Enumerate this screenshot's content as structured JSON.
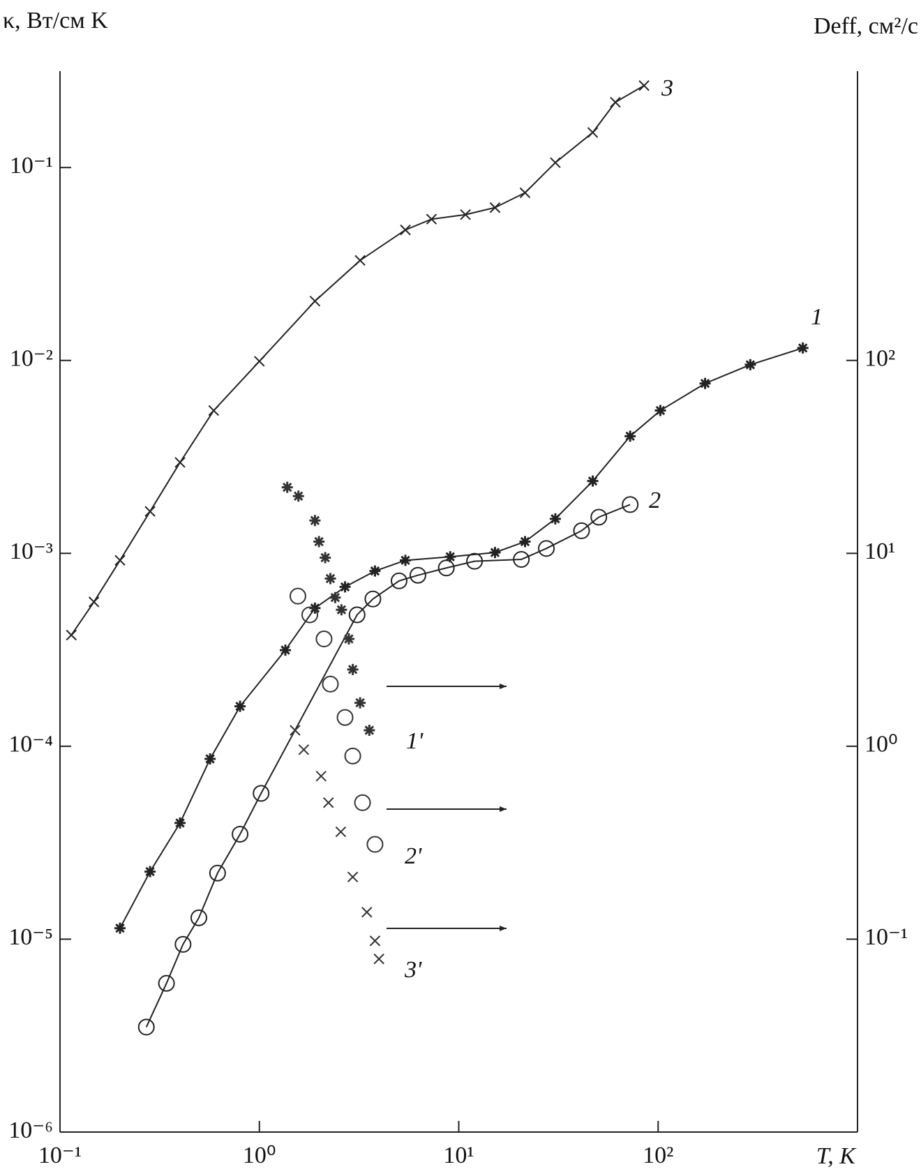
{
  "chart_data": {
    "type": "scatter",
    "xlabel": "T, K",
    "ylabel": "κ, Вт/см K",
    "y2label": "Deff, см²/с",
    "xscale": "log",
    "yscale": "log",
    "xlim": [
      0.1,
      1000
    ],
    "ylim": [
      1e-06,
      0.316
    ],
    "y2lim": [
      0.01,
      3160
    ],
    "xticks": [
      {
        "value": 0.1,
        "label": "10⁻¹"
      },
      {
        "value": 1,
        "label": "10⁰"
      },
      {
        "value": 10,
        "label": "10¹"
      },
      {
        "value": 100,
        "label": "10²"
      }
    ],
    "yticks": [
      {
        "value": 1e-06,
        "label": "10⁻⁶"
      },
      {
        "value": 1e-05,
        "label": "10⁻⁵"
      },
      {
        "value": 0.0001,
        "label": "10⁻⁴"
      },
      {
        "value": 0.001,
        "label": "10⁻³"
      },
      {
        "value": 0.01,
        "label": "10⁻²"
      },
      {
        "value": 0.1,
        "label": "10⁻¹"
      }
    ],
    "y2ticks": [
      {
        "value": 0.1,
        "label": "10⁻¹"
      },
      {
        "value": 1,
        "label": "10⁰"
      },
      {
        "value": 10,
        "label": "10¹"
      },
      {
        "value": 100,
        "label": "10²"
      }
    ],
    "series": [
      {
        "name": "1",
        "color": "#222222",
        "marker": "asterisk",
        "line": true,
        "x": [
          0.2,
          0.283,
          0.4,
          0.566,
          0.8,
          1.35,
          1.9,
          2.69,
          3.8,
          5.4,
          9.06,
          15.2,
          21.5,
          30.5,
          47,
          72.4,
          102.6,
          172,
          290,
          532
        ],
        "values": [
          1.14e-05,
          2.24e-05,
          4e-05,
          8.6e-05,
          0.000161,
          0.000315,
          0.00052,
          0.00067,
          0.00081,
          0.00092,
          0.00096,
          0.00101,
          0.00115,
          0.00151,
          0.00237,
          0.00405,
          0.0055,
          0.0076,
          0.0095,
          0.0116
        ]
      },
      {
        "name": "2",
        "color": "#222222",
        "marker": "circle",
        "line": true,
        "x": [
          0.271,
          0.342,
          0.414,
          0.497,
          0.617,
          0.8,
          1.02,
          3.09,
          3.71,
          5.02,
          6.24,
          8.66,
          12,
          20.6,
          27.5,
          41.3,
          50.4,
          72.4
        ],
        "values": [
          3.5e-06,
          5.9e-06,
          9.4e-06,
          1.29e-05,
          2.2e-05,
          3.5e-05,
          5.7e-05,
          0.00048,
          0.00058,
          0.00072,
          0.00077,
          0.00084,
          0.00091,
          0.00093,
          0.00106,
          0.00131,
          0.00154,
          0.00179
        ]
      },
      {
        "name": "3",
        "color": "#222222",
        "marker": "cross",
        "line": true,
        "x": [
          0.114,
          0.148,
          0.2,
          0.283,
          0.4,
          0.59,
          1.0,
          1.9,
          3.2,
          5.4,
          7.3,
          10.8,
          15.2,
          21.5,
          30.5,
          47,
          61,
          85
        ],
        "values": [
          0.000377,
          0.00056,
          0.00092,
          0.00165,
          0.00296,
          0.0055,
          0.0099,
          0.0203,
          0.033,
          0.0475,
          0.054,
          0.057,
          0.062,
          0.074,
          0.106,
          0.152,
          0.218,
          0.266
        ]
      },
      {
        "name": "1'",
        "color": "#333333",
        "marker": "asterisk",
        "line": false,
        "axis": "y2",
        "x": [
          1.38,
          1.57,
          1.9,
          1.99,
          2.14,
          2.27,
          2.4,
          2.58,
          2.81,
          2.94,
          3.2,
          3.56
        ],
        "values": [
          22,
          19.8,
          14.8,
          11.5,
          9.5,
          7.4,
          5.9,
          5.1,
          3.6,
          2.5,
          1.68,
          1.21
        ]
      },
      {
        "name": "2'",
        "color": "#333333",
        "marker": "circle",
        "line": false,
        "axis": "y2",
        "x": [
          1.56,
          1.79,
          2.11,
          2.27,
          2.69,
          2.94,
          3.29,
          3.8
        ],
        "values": [
          6.0,
          4.8,
          3.6,
          2.1,
          1.41,
          0.89,
          0.51,
          0.31
        ]
      },
      {
        "name": "3'",
        "color": "#333333",
        "marker": "cross",
        "line": false,
        "axis": "y2",
        "x": [
          1.51,
          1.67,
          2.04,
          2.22,
          2.56,
          2.94,
          3.46,
          3.8,
          3.98
        ],
        "values": [
          1.21,
          0.96,
          0.7,
          0.51,
          0.36,
          0.21,
          0.138,
          0.098,
          0.079
        ]
      }
    ]
  }
}
